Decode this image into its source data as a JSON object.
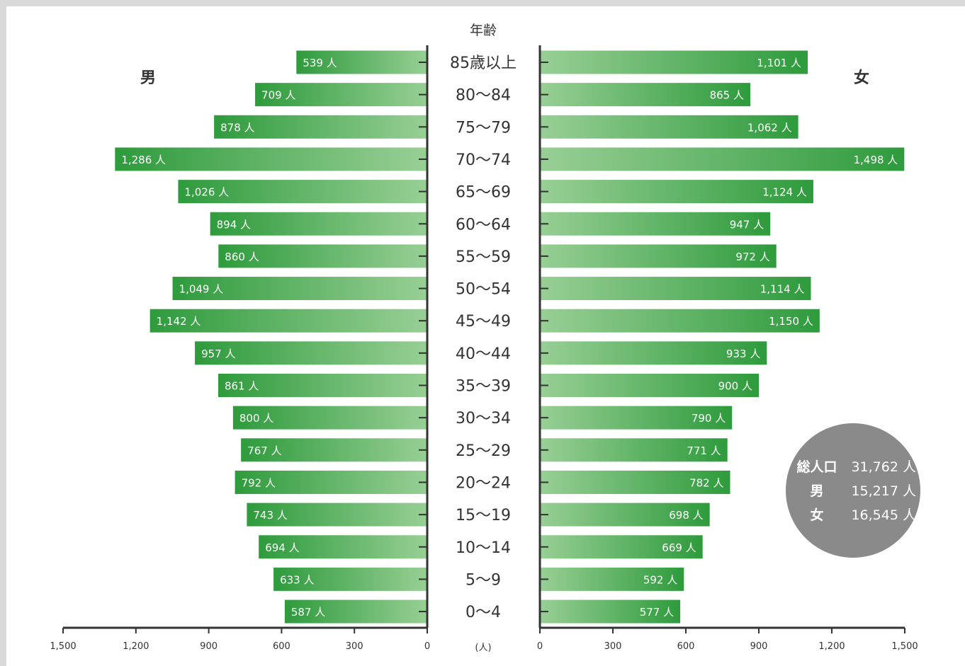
{
  "chart_data": {
    "type": "bar",
    "title": "年齢",
    "unit_label": "(人)",
    "male_label": "男",
    "female_label": "女",
    "value_suffix": " 人",
    "categories": [
      "85歳以上",
      "80〜84",
      "75〜79",
      "70〜74",
      "65〜69",
      "60〜64",
      "55〜59",
      "50〜54",
      "45〜49",
      "40〜44",
      "35〜39",
      "30〜34",
      "25〜29",
      "20〜24",
      "15〜19",
      "10〜14",
      "5〜9",
      "0〜4"
    ],
    "series": [
      {
        "name": "男",
        "values": [
          539,
          709,
          878,
          1286,
          1026,
          894,
          860,
          1049,
          1142,
          957,
          861,
          800,
          767,
          792,
          743,
          694,
          633,
          587
        ],
        "labels": [
          "539",
          "709",
          "878",
          "1,286",
          "1,026",
          "894",
          "860",
          "1,049",
          "1,142",
          "957",
          "861",
          "800",
          "767",
          "792",
          "743",
          "694",
          "633",
          "587"
        ]
      },
      {
        "name": "女",
        "values": [
          1101,
          865,
          1062,
          1498,
          1124,
          947,
          972,
          1114,
          1150,
          933,
          900,
          790,
          771,
          782,
          698,
          669,
          592,
          577
        ],
        "labels": [
          "1,101",
          "865",
          "1,062",
          "1,498",
          "1,124",
          "947",
          "972",
          "1,114",
          "1,150",
          "933",
          "900",
          "790",
          "771",
          "782",
          "698",
          "669",
          "592",
          "577"
        ]
      }
    ],
    "xlim": [
      0,
      1500
    ],
    "male_ticks": [
      "1,500",
      "1,200",
      "900",
      "600",
      "300",
      "0"
    ],
    "female_ticks": [
      "0",
      "300",
      "600",
      "900",
      "1,200",
      "1,500"
    ],
    "colors": {
      "bar_dark": "#2e9b3c",
      "bar_light": "#98cf95",
      "axis": "#333333",
      "summary_circle": "#8a8a8a"
    }
  },
  "summary": {
    "rows": [
      {
        "label": "総人口",
        "value": "31,762 人"
      },
      {
        "label": "男",
        "value": "15,217 人"
      },
      {
        "label": "女",
        "value": "16,545 人"
      }
    ]
  }
}
